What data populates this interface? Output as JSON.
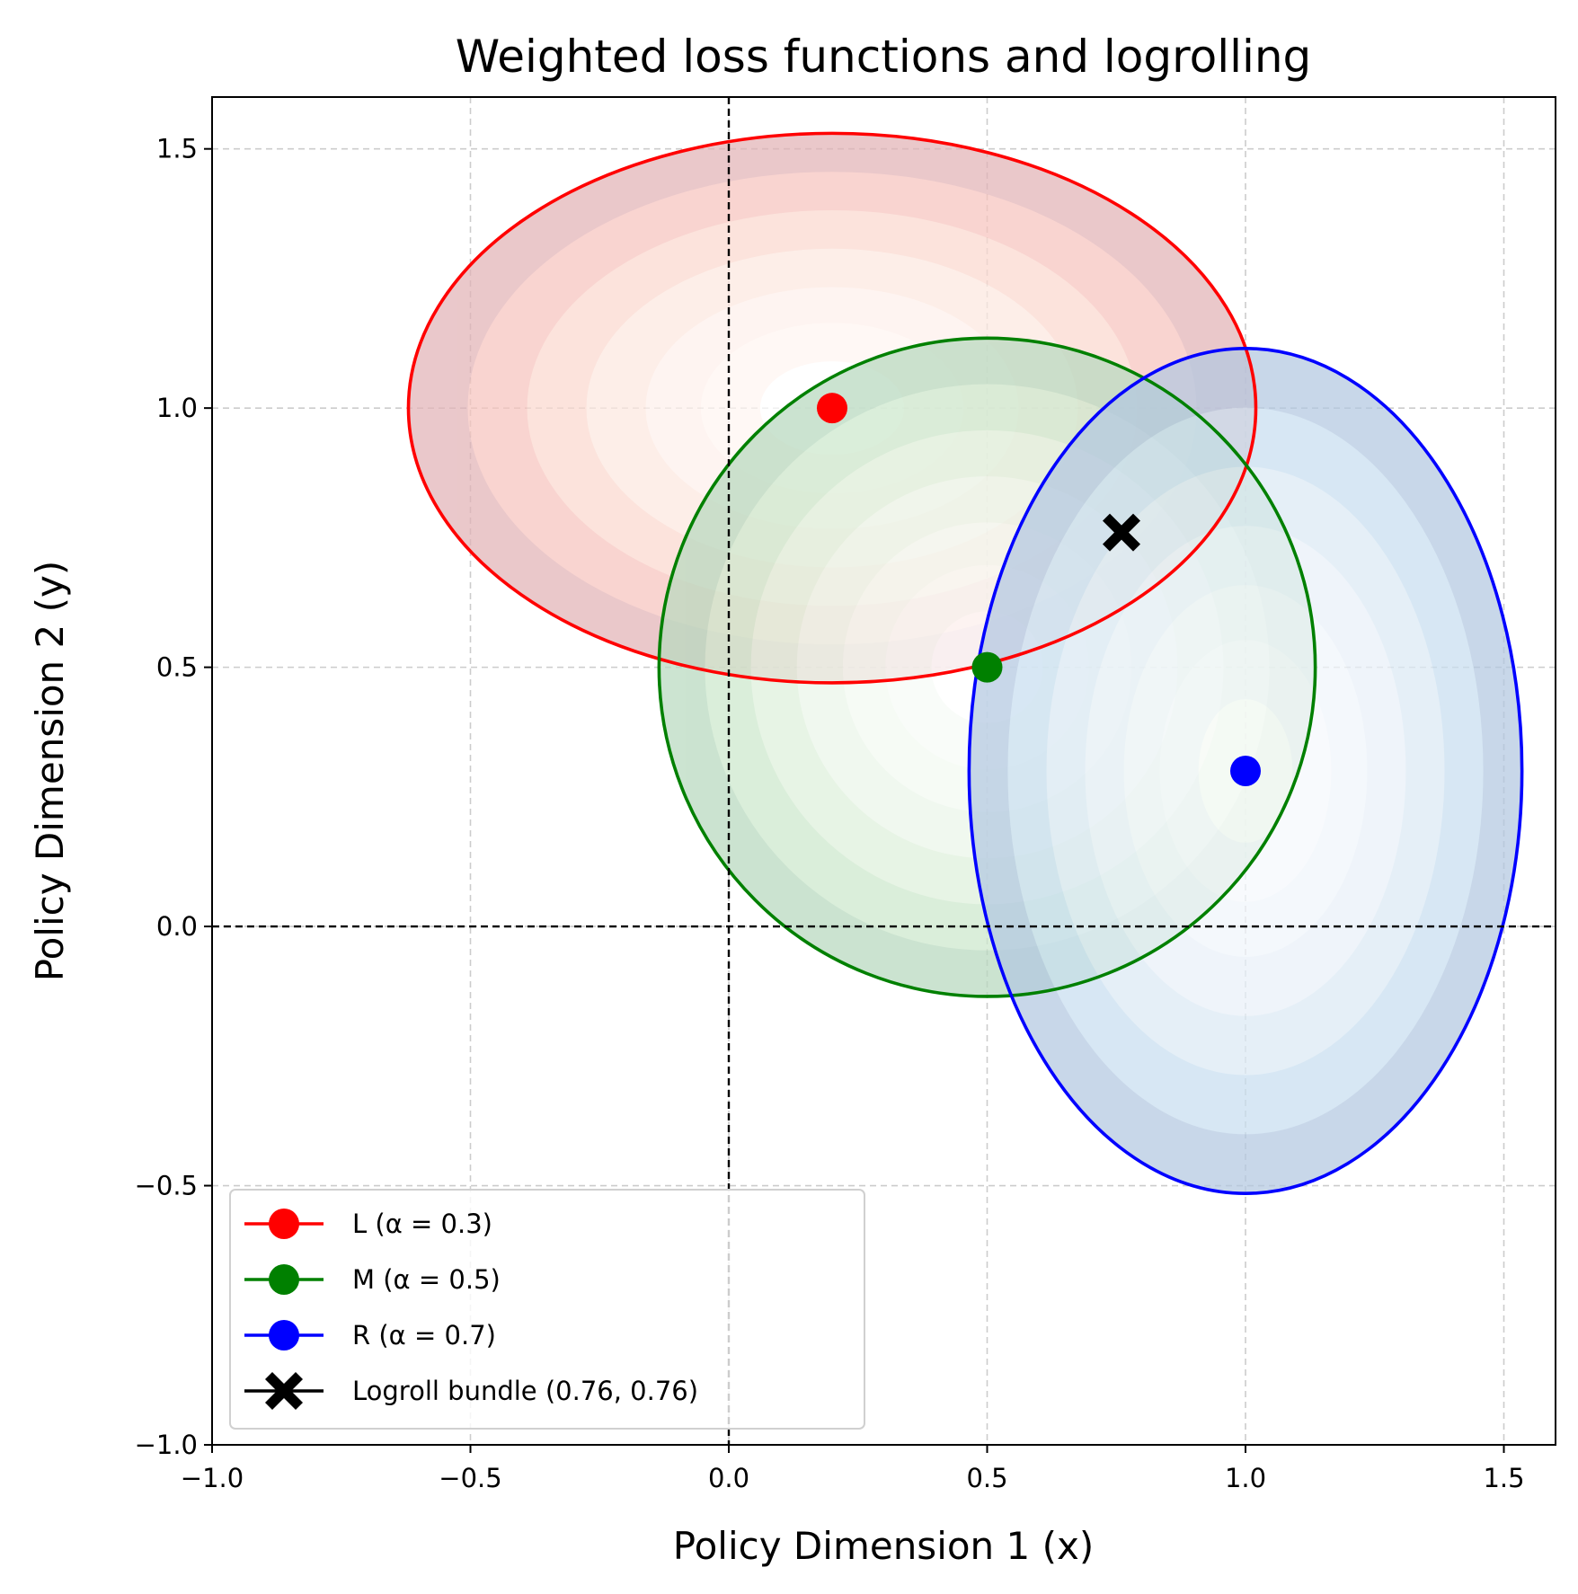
{
  "chart_data": {
    "type": "scatter",
    "title": "Weighted loss functions and logrolling",
    "xlabel": "Policy Dimension 1 (x)",
    "ylabel": "Policy Dimension 2 (y)",
    "xlim": [
      -1.0,
      1.6
    ],
    "ylim": [
      -1.0,
      1.6
    ],
    "x_ticks": [
      -1.0,
      -0.5,
      0.0,
      0.5,
      1.0,
      1.5
    ],
    "y_ticks": [
      -1.0,
      -0.5,
      0.0,
      0.5,
      1.0,
      1.5
    ],
    "x_tick_labels": [
      "−1.0",
      "−0.5",
      "0.0",
      "0.5",
      "1.0",
      "1.5"
    ],
    "y_tick_labels": [
      "−1.0",
      "−0.5",
      "0.0",
      "0.5",
      "1.0",
      "1.5"
    ],
    "grid": true,
    "reference_lines": {
      "x": 0.0,
      "y": 0.0,
      "style": "dashed",
      "color": "#000000"
    },
    "legend_position": "lower-left",
    "series": [
      {
        "name": "L (α = 0.3)",
        "label": "L",
        "alpha": 0.3,
        "point": {
          "x": 0.2,
          "y": 1.0
        },
        "color": "#ff0000",
        "contour": {
          "center_x": 0.2,
          "center_y": 1.0,
          "rx": 0.82,
          "ry": 0.53
        },
        "fill_colors": [
          "#e2b3b7",
          "#f7c4be",
          "#fbd9cf",
          "#fde8e0",
          "#fef1ec",
          "#fff6f2",
          "#ffffff"
        ]
      },
      {
        "name": "M (α = 0.5)",
        "label": "M",
        "alpha": 0.5,
        "point": {
          "x": 0.5,
          "y": 0.5
        },
        "color": "#008000",
        "contour": {
          "center_x": 0.5,
          "center_y": 0.5,
          "rx": 0.635,
          "ry": 0.635
        },
        "fill_colors": [
          "#b8d9bf",
          "#cde8cd",
          "#dff0dc",
          "#ebf6e9",
          "#f3faf2",
          "#f8fcf7",
          "#ffffff"
        ]
      },
      {
        "name": "R (α = 0.7)",
        "label": "R",
        "alpha": 0.7,
        "point": {
          "x": 1.0,
          "y": 0.3
        },
        "color": "#0000ff",
        "contour": {
          "center_x": 1.0,
          "center_y": 0.3,
          "rx": 0.535,
          "ry": 0.815
        },
        "fill_colors": [
          "#b3c8e1",
          "#c9dff0",
          "#dceaf5",
          "#e9f1f9",
          "#f1f6fb",
          "#f6f9fd",
          "#ffffff"
        ]
      }
    ],
    "logroll": {
      "name": "Logroll bundle (0.76, 0.76)",
      "x": 0.76,
      "y": 0.76,
      "marker": "X",
      "color": "#000000"
    }
  }
}
